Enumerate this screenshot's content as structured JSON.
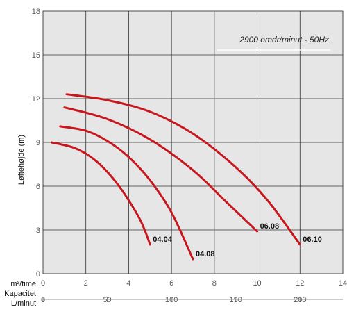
{
  "chart_data": {
    "type": "line",
    "annotation": "2900 omdr/minut - 50Hz",
    "ylabel": "Løftehøjde (m)",
    "xlabel_primary": "m³/time",
    "xlabel_secondary": [
      "Kapacitet",
      "L/minut"
    ],
    "xlim": [
      0,
      14
    ],
    "ylim": [
      0,
      18
    ],
    "x_ticks": [
      0,
      2,
      4,
      6,
      8,
      10,
      12,
      14
    ],
    "y_ticks": [
      0,
      3,
      6,
      9,
      12,
      15,
      18
    ],
    "x2_ticks": [
      0,
      50,
      100,
      150,
      200
    ],
    "x2_per_x": 16.6667,
    "grid": true,
    "line_color": "#c8161d",
    "series": [
      {
        "name": "04.04",
        "x": [
          0.4,
          1.5,
          2.5,
          3.5,
          4.5,
          5.0
        ],
        "y": [
          9.0,
          8.6,
          7.7,
          6.1,
          3.8,
          2.0
        ]
      },
      {
        "name": "04.08",
        "x": [
          0.8,
          2.0,
          3.0,
          4.0,
          5.0,
          6.0,
          7.0
        ],
        "y": [
          10.1,
          9.8,
          9.1,
          8.0,
          6.4,
          4.2,
          1.0
        ]
      },
      {
        "name": "06.08",
        "x": [
          1.0,
          3.0,
          5.0,
          7.0,
          8.5,
          10.0
        ],
        "y": [
          11.4,
          10.6,
          9.2,
          7.1,
          5.0,
          2.9
        ]
      },
      {
        "name": "06.10",
        "x": [
          1.1,
          3.0,
          5.0,
          7.0,
          9.0,
          10.5,
          12.0
        ],
        "y": [
          12.3,
          11.9,
          11.1,
          9.6,
          7.3,
          5.0,
          2.0
        ]
      }
    ]
  }
}
